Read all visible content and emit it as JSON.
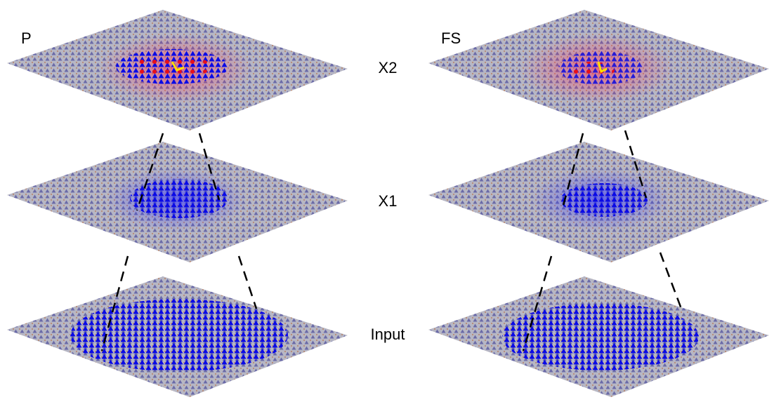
{
  "columns": [
    "P",
    "FS"
  ],
  "layers": [
    "X2",
    "X1",
    "Input"
  ]
}
